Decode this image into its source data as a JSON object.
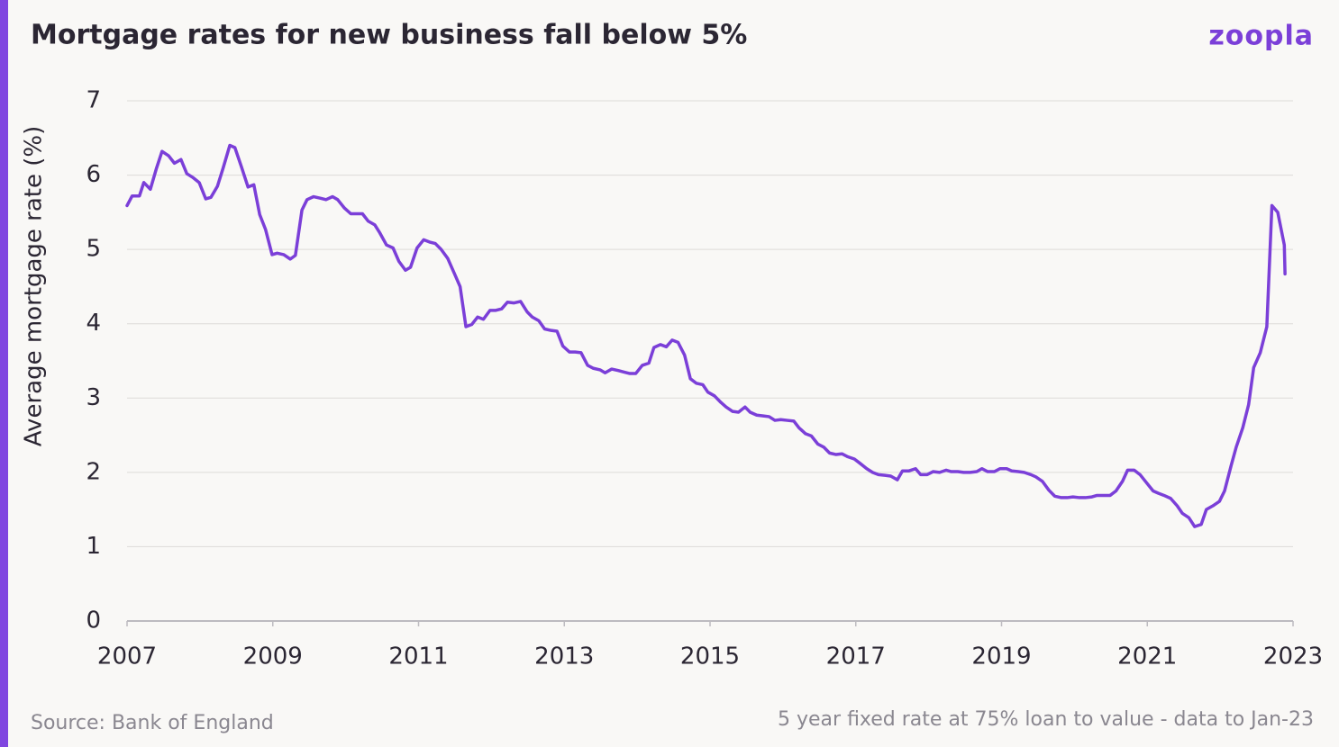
{
  "chart_data": {
    "type": "line",
    "title": "Mortgage rates for new business fall below 5%",
    "logo": "zoopla",
    "ylabel": "Average mortgage rate (%)",
    "source": "Source: Bank of England",
    "note": "5 year fixed rate at 75% loan to value - data to Jan-23",
    "xlim": [
      2007,
      2023
    ],
    "xticks": [
      2007,
      2009,
      2011,
      2013,
      2015,
      2017,
      2019,
      2021,
      2023
    ],
    "ylim": [
      0,
      7
    ],
    "yticks": [
      0,
      1,
      2,
      3,
      4,
      5,
      6,
      7
    ],
    "grid": true,
    "x": [
      2007.0,
      2007.07,
      2007.17,
      2007.23,
      2007.32,
      2007.4,
      2007.48,
      2007.57,
      2007.65,
      2007.74,
      2007.82,
      2007.9,
      2007.99,
      2008.08,
      2008.15,
      2008.24,
      2008.32,
      2008.41,
      2008.48,
      2008.57,
      2008.66,
      2008.74,
      2008.82,
      2008.9,
      2008.99,
      2009.06,
      2009.15,
      2009.24,
      2009.31,
      2009.4,
      2009.47,
      2009.56,
      2009.65,
      2009.73,
      2009.82,
      2009.89,
      2009.98,
      2010.07,
      2010.23,
      2010.31,
      2010.4,
      2010.47,
      2010.56,
      2010.65,
      2010.73,
      2010.82,
      2010.89,
      2010.98,
      2011.07,
      2011.15,
      2011.23,
      2011.31,
      2011.4,
      2011.49,
      2011.57,
      2011.65,
      2011.73,
      2011.81,
      2011.89,
      2011.98,
      2012.06,
      2012.14,
      2012.22,
      2012.31,
      2012.4,
      2012.49,
      2012.56,
      2012.65,
      2012.73,
      2012.82,
      2012.9,
      2012.98,
      2013.07,
      2013.15,
      2013.23,
      2013.32,
      2013.4,
      2013.49,
      2013.56,
      2013.65,
      2013.74,
      2013.82,
      2013.9,
      2013.98,
      2014.07,
      2014.16,
      2014.23,
      2014.32,
      2014.4,
      2014.48,
      2014.56,
      2014.65,
      2014.73,
      2014.81,
      2014.9,
      2014.97,
      2015.06,
      2015.15,
      2015.22,
      2015.31,
      2015.39,
      2015.48,
      2015.55,
      2015.64,
      2015.73,
      2015.81,
      2015.89,
      2015.97,
      2016.06,
      2016.15,
      2016.22,
      2016.31,
      2016.39,
      2016.48,
      2016.56,
      2016.64,
      2016.73,
      2016.81,
      2016.89,
      2016.98,
      2017.06,
      2017.15,
      2017.23,
      2017.31,
      2017.4,
      2017.48,
      2017.57,
      2017.64,
      2017.73,
      2017.82,
      2017.89,
      2017.98,
      2018.06,
      2018.15,
      2018.24,
      2018.31,
      2018.4,
      2018.48,
      2018.57,
      2018.66,
      2018.73,
      2018.81,
      2018.9,
      2018.98,
      2019.07,
      2019.14,
      2019.23,
      2019.31,
      2019.4,
      2019.47,
      2019.56,
      2019.65,
      2019.73,
      2019.82,
      2019.9,
      2019.98,
      2020.07,
      2020.15,
      2020.24,
      2020.31,
      2020.4,
      2020.49,
      2020.57,
      2020.66,
      2020.73,
      2020.82,
      2020.9,
      2020.99,
      2021.08,
      2021.15,
      2021.23,
      2021.32,
      2021.41,
      2021.48,
      2021.57,
      2021.65,
      2021.74,
      2021.81,
      2021.9,
      2021.99,
      2022.06,
      2022.15,
      2022.22,
      2022.31,
      2022.39,
      2022.46,
      2022.55,
      2022.64,
      2022.71,
      2022.79,
      2022.88,
      2022.89
    ],
    "series": [
      {
        "name": "5 year fixed rate",
        "color": "#7b3fd8",
        "values": [
          5.59,
          5.72,
          5.72,
          5.9,
          5.81,
          6.08,
          6.32,
          6.26,
          6.16,
          6.21,
          6.02,
          5.97,
          5.9,
          5.68,
          5.7,
          5.85,
          6.1,
          6.4,
          6.37,
          6.11,
          5.84,
          5.87,
          5.47,
          5.27,
          4.93,
          4.95,
          4.93,
          4.87,
          4.92,
          5.53,
          5.67,
          5.71,
          5.69,
          5.67,
          5.71,
          5.67,
          5.56,
          5.48,
          5.48,
          5.38,
          5.33,
          5.22,
          5.06,
          5.02,
          4.84,
          4.72,
          4.76,
          5.02,
          5.13,
          5.1,
          5.08,
          5.0,
          4.88,
          4.68,
          4.5,
          3.96,
          3.99,
          4.09,
          4.06,
          4.18,
          4.18,
          4.2,
          4.29,
          4.28,
          4.3,
          4.16,
          4.09,
          4.04,
          3.93,
          3.91,
          3.9,
          3.7,
          3.62,
          3.62,
          3.61,
          3.44,
          3.4,
          3.38,
          3.34,
          3.39,
          3.37,
          3.35,
          3.33,
          3.33,
          3.44,
          3.47,
          3.68,
          3.72,
          3.69,
          3.78,
          3.75,
          3.58,
          3.26,
          3.2,
          3.18,
          3.08,
          3.03,
          2.94,
          2.88,
          2.82,
          2.81,
          2.88,
          2.81,
          2.77,
          2.76,
          2.75,
          2.7,
          2.71,
          2.7,
          2.69,
          2.6,
          2.52,
          2.49,
          2.38,
          2.34,
          2.26,
          2.24,
          2.25,
          2.21,
          2.18,
          2.12,
          2.05,
          2.0,
          1.97,
          1.96,
          1.95,
          1.9,
          2.02,
          2.02,
          2.05,
          1.97,
          1.97,
          2.01,
          2.0,
          2.03,
          2.01,
          2.01,
          2.0,
          2.0,
          2.01,
          2.05,
          2.01,
          2.01,
          2.05,
          2.05,
          2.02,
          2.01,
          2.0,
          1.97,
          1.94,
          1.88,
          1.76,
          1.68,
          1.66,
          1.66,
          1.67,
          1.66,
          1.66,
          1.67,
          1.69,
          1.69,
          1.69,
          1.75,
          1.88,
          2.03,
          2.03,
          1.97,
          1.86,
          1.75,
          1.72,
          1.69,
          1.65,
          1.55,
          1.45,
          1.39,
          1.27,
          1.3,
          1.5,
          1.55,
          1.61,
          1.75,
          2.09,
          2.34,
          2.6,
          2.91,
          3.41,
          3.61,
          3.96,
          5.59,
          5.5,
          5.06,
          4.67
        ]
      }
    ]
  }
}
